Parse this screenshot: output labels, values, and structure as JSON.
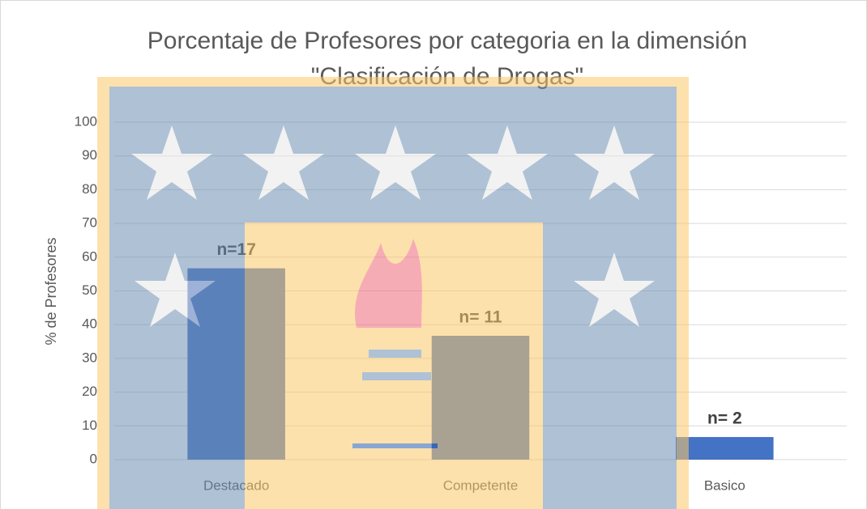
{
  "chart_data": {
    "type": "bar",
    "title": [
      "Porcentaje de Profesores por categoria en la dimensión",
      "\"Clasificación de Drogas\""
    ],
    "ylabel": "% de Profesores",
    "categories": [
      "Destacado",
      "Competente",
      "Basico"
    ],
    "values": [
      56.7,
      36.7,
      6.7
    ],
    "annotations": [
      "n=17",
      "n= 11",
      "n= 2"
    ],
    "color": "#4472c4",
    "ylim": [
      0,
      100
    ],
    "yticks": [
      0,
      10,
      20,
      30,
      40,
      50,
      60,
      70,
      80,
      90,
      100
    ],
    "grid": true
  }
}
